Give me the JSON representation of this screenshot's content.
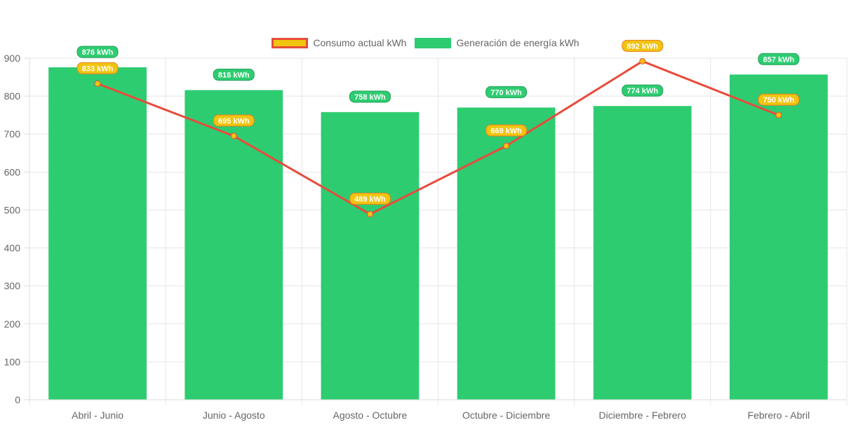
{
  "chart_data": {
    "type": "bar",
    "title": "",
    "xlabel": "",
    "ylabel": "",
    "categories": [
      "Abril - Junio",
      "Junio - Agosto",
      "Agosto - Octubre",
      "Octubre - Diciembre",
      "Diciembre - Febrero",
      "Febrero - Abril"
    ],
    "ylim": [
      0,
      900
    ],
    "yticks": [
      "0",
      "100",
      "200",
      "300",
      "400",
      "500",
      "600",
      "700",
      "800",
      "900"
    ],
    "grid": true,
    "legend_position": "top-center",
    "series": [
      {
        "name": "Consumo actual kWh",
        "type": "line",
        "values": [
          833,
          695,
          489,
          669,
          892,
          750
        ],
        "labels": [
          "833 kWh",
          "695 kWh",
          "489 kWh",
          "669 kWh",
          "892 kWh",
          "750 kWh"
        ],
        "line_color": "#e74c3c",
        "fill_color": "#f1c40f"
      },
      {
        "name": "Generación de energía kWh",
        "type": "bar",
        "values": [
          876,
          816,
          758,
          770,
          774,
          857
        ],
        "labels": [
          "876 kWh",
          "816 kWh",
          "758 kWh",
          "770 kWh",
          "774 kWh",
          "857 kWh"
        ],
        "fill_color": "#2ecc71"
      }
    ]
  }
}
